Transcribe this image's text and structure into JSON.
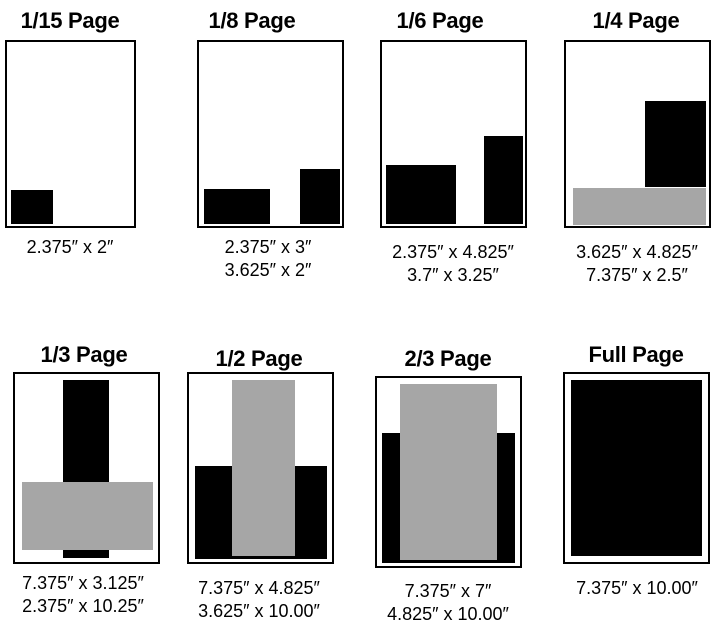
{
  "colors": {
    "black_block": "#000000",
    "gray_block": "#a6a6a6",
    "frame": "#000000"
  },
  "ads": [
    {
      "id": "p15",
      "title": "1/15 Page",
      "dims": [
        "2.375″ x 2″"
      ]
    },
    {
      "id": "p8",
      "title": "1/8 Page",
      "dims": [
        "2.375″ x 3″",
        "3.625″ x 2″"
      ]
    },
    {
      "id": "p6",
      "title": "1/6 Page",
      "dims": [
        "2.375″ x 4.825″",
        "3.7″ x 3.25″"
      ]
    },
    {
      "id": "p4",
      "title": "1/4 Page",
      "dims": [
        "3.625″ x 4.825″",
        "7.375″ x 2.5″"
      ]
    },
    {
      "id": "p3",
      "title": "1/3 Page",
      "dims": [
        "7.375″ x 3.125″",
        "2.375″ x 10.25″"
      ]
    },
    {
      "id": "p2",
      "title": "1/2 Page",
      "dims": [
        "7.375″ x 4.825″",
        "3.625″ x 10.00″"
      ]
    },
    {
      "id": "p23",
      "title": "2/3 Page",
      "dims": [
        "7.375″ x 7″",
        "4.825″ x 10.00″"
      ]
    },
    {
      "id": "pf",
      "title": "Full Page",
      "dims": [
        "7.375″ x 10.00″"
      ]
    }
  ]
}
